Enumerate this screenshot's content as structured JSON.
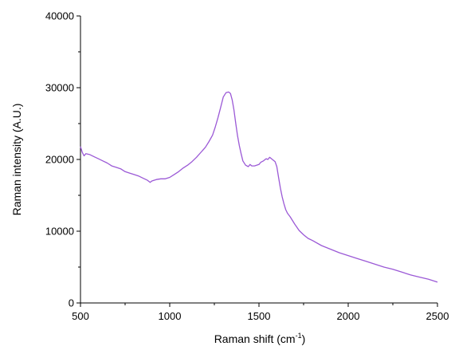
{
  "chart_data": {
    "type": "line",
    "title": "",
    "xlabel": {
      "text": "Raman shift (cm",
      "sup": "-1",
      "suffix": ")"
    },
    "ylabel": "Raman intensity (A.U.)",
    "xlim": [
      500,
      2500
    ],
    "ylim": [
      0,
      40000
    ],
    "x_ticks": [
      500,
      1000,
      1500,
      2000,
      2500
    ],
    "y_ticks": [
      0,
      10000,
      20000,
      30000,
      40000
    ],
    "x_ticks_minor": [
      750,
      1250,
      1750,
      2250
    ],
    "y_ticks_minor": [
      5000,
      15000,
      25000,
      35000
    ],
    "grid": false,
    "legend": "none",
    "line_color": "#9b59d6",
    "series": [
      {
        "x": [
          500,
          510,
          520,
          530,
          550,
          575,
          600,
          625,
          650,
          675,
          700,
          725,
          750,
          775,
          800,
          825,
          850,
          875,
          890,
          900,
          925,
          950,
          975,
          1000,
          1025,
          1050,
          1075,
          1100,
          1125,
          1150,
          1175,
          1200,
          1220,
          1240,
          1255,
          1270,
          1285,
          1300,
          1315,
          1330,
          1340,
          1350,
          1360,
          1370,
          1380,
          1390,
          1400,
          1410,
          1425,
          1440,
          1450,
          1460,
          1475,
          1500,
          1510,
          1525,
          1540,
          1550,
          1560,
          1575,
          1590,
          1600,
          1610,
          1620,
          1630,
          1640,
          1650,
          1660,
          1675,
          1700,
          1725,
          1750,
          1775,
          1800,
          1850,
          1900,
          1950,
          2000,
          2050,
          2100,
          2150,
          2200,
          2250,
          2300,
          2350,
          2400,
          2450,
          2500
        ],
        "y": [
          21800,
          21000,
          20500,
          20800,
          20700,
          20400,
          20100,
          19800,
          19500,
          19100,
          18900,
          18700,
          18300,
          18100,
          17900,
          17700,
          17400,
          17100,
          16800,
          17000,
          17200,
          17300,
          17300,
          17500,
          17900,
          18300,
          18800,
          19200,
          19700,
          20300,
          21000,
          21700,
          22500,
          23400,
          24500,
          25800,
          27200,
          28700,
          29300,
          29400,
          29200,
          28300,
          26900,
          25000,
          23300,
          21900,
          20800,
          19800,
          19200,
          19000,
          19300,
          19100,
          19100,
          19300,
          19600,
          19800,
          20100,
          20000,
          20300,
          20000,
          19700,
          19000,
          17500,
          16000,
          14800,
          13800,
          13000,
          12500,
          12000,
          11000,
          10100,
          9500,
          9000,
          8700,
          8000,
          7500,
          7000,
          6600,
          6200,
          5800,
          5400,
          5000,
          4700,
          4300,
          3900,
          3600,
          3300,
          2900
        ]
      }
    ]
  }
}
